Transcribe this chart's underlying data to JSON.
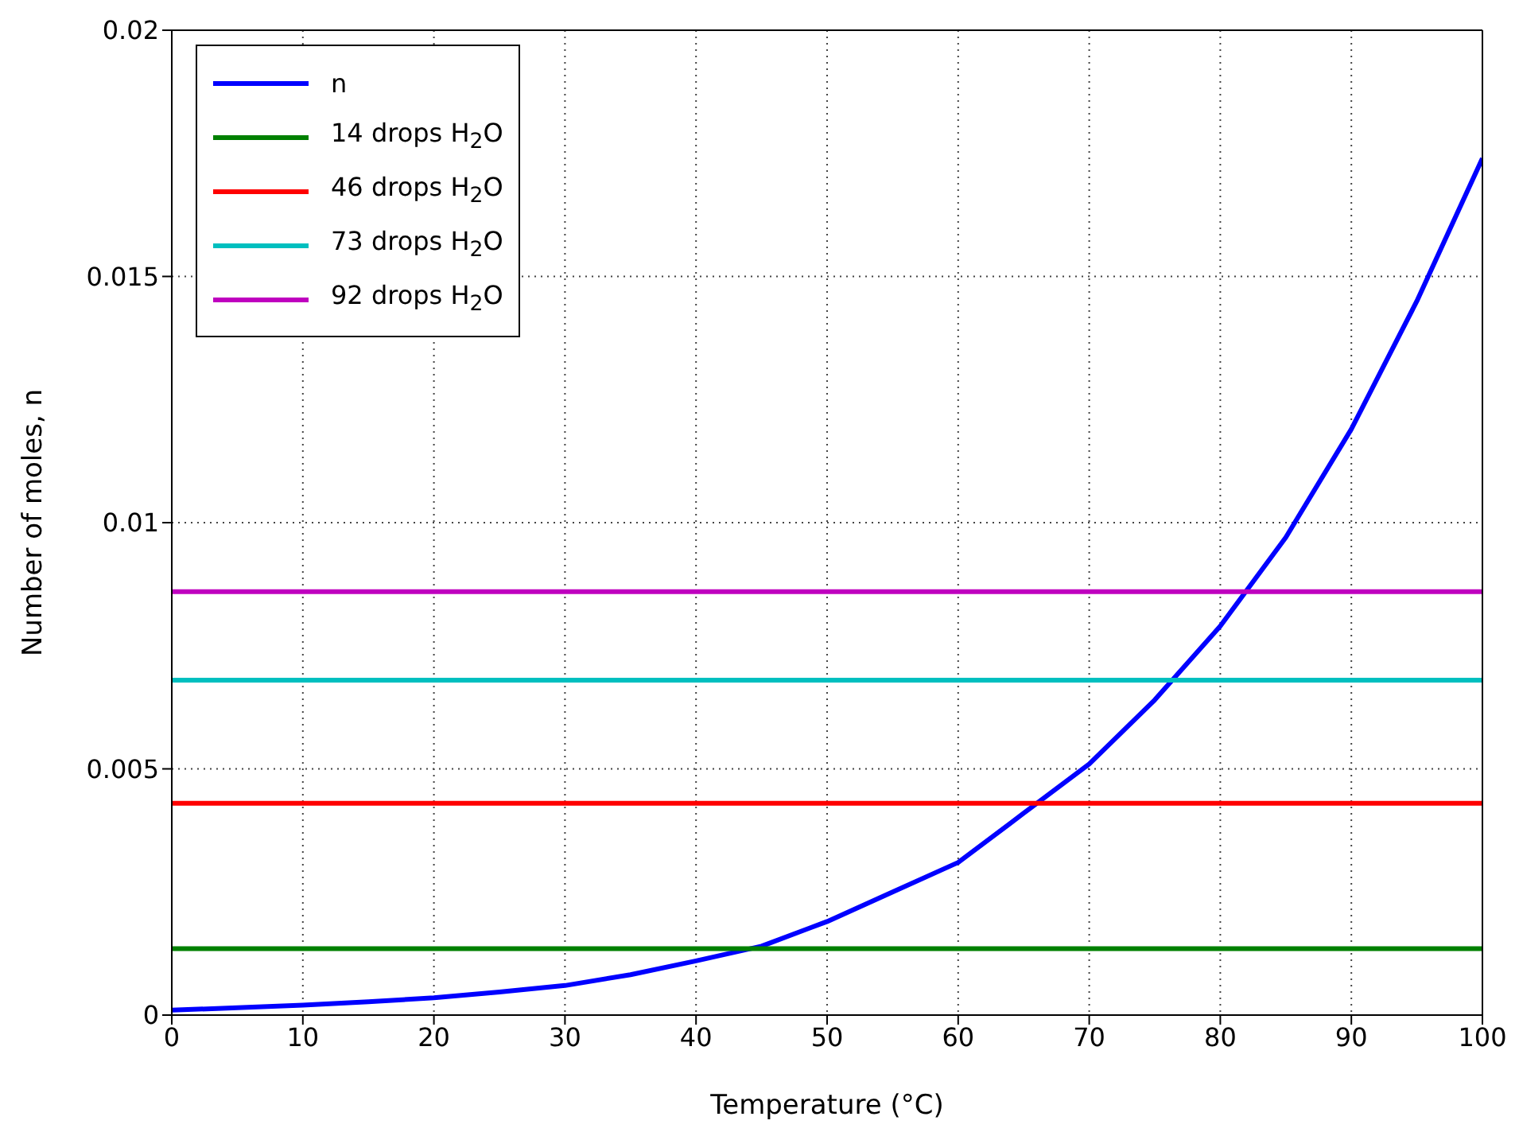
{
  "chart_data": {
    "type": "line",
    "xlabel": "Temperature (°C)",
    "ylabel": "Number of moles, n",
    "xlim": [
      0,
      100
    ],
    "ylim": [
      0,
      0.02
    ],
    "xticks": [
      0,
      10,
      20,
      30,
      40,
      50,
      60,
      70,
      80,
      90,
      100
    ],
    "yticks": [
      0,
      0.005,
      0.01,
      0.015,
      0.02
    ],
    "grid": true,
    "legend": "top left",
    "marker": "none",
    "line_style": "solid",
    "series": [
      {
        "name": "n",
        "color": "#0000ff",
        "x": [
          0,
          5,
          10,
          15,
          20,
          25,
          30,
          35,
          40,
          45,
          50,
          55,
          60,
          65,
          70,
          75,
          80,
          85,
          90,
          95,
          100
        ],
        "values": [
          0.0001,
          0.00015,
          0.0002,
          0.00027,
          0.00035,
          0.00047,
          0.0006,
          0.00082,
          0.0011,
          0.0014,
          0.0019,
          0.0025,
          0.0031,
          0.0041,
          0.0051,
          0.0064,
          0.0079,
          0.0097,
          0.0119,
          0.0145,
          0.0174
        ]
      },
      {
        "name": "14 drops H$_{2}$O",
        "color": "#008000",
        "x": [
          0,
          100
        ],
        "values": [
          0.00135,
          0.00135
        ]
      },
      {
        "name": "46 drops H$_{2}$O",
        "color": "#ff0000",
        "x": [
          0,
          100
        ],
        "values": [
          0.0043,
          0.0043
        ]
      },
      {
        "name": "73 drops H$_{2}$O",
        "color": "#00bfbf",
        "x": [
          0,
          100
        ],
        "values": [
          0.0068,
          0.0068
        ]
      },
      {
        "name": "92 drops H$_{2}$O",
        "color": "#bf00bf",
        "x": [
          0,
          100
        ],
        "values": [
          0.0086,
          0.0086
        ]
      }
    ]
  }
}
